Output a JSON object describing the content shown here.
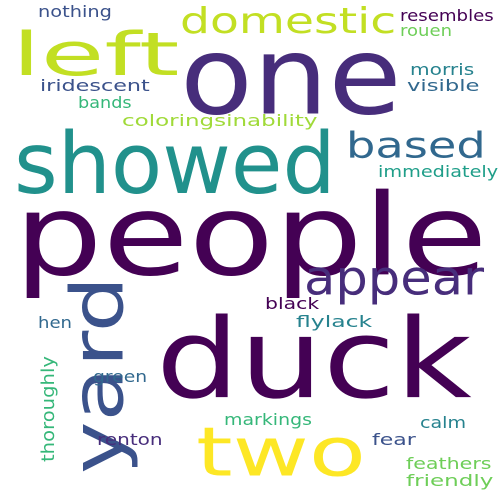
{
  "words": [
    {
      "text": "people",
      "color": "#440154",
      "orientation": "horizontal"
    },
    {
      "text": "duck",
      "color": "#440154",
      "orientation": "horizontal"
    },
    {
      "text": "one",
      "color": "#472d7b",
      "orientation": "horizontal"
    },
    {
      "text": "showed",
      "color": "#21918c",
      "orientation": "horizontal"
    },
    {
      "text": "left",
      "color": "#c2df23",
      "orientation": "horizontal"
    },
    {
      "text": "two",
      "color": "#fde725",
      "orientation": "horizontal"
    },
    {
      "text": "yard",
      "color": "#3b528b",
      "orientation": "vertical"
    },
    {
      "text": "appear",
      "color": "#472d7b",
      "orientation": "horizontal"
    },
    {
      "text": "domestic",
      "color": "#c2df23",
      "orientation": "horizontal"
    },
    {
      "text": "based",
      "color": "#31688e",
      "orientation": "horizontal"
    },
    {
      "text": "resembles",
      "color": "#440154",
      "orientation": "horizontal"
    },
    {
      "text": "rouen",
      "color": "#6ece58",
      "orientation": "horizontal"
    },
    {
      "text": "nothing",
      "color": "#3b528b",
      "orientation": "horizontal"
    },
    {
      "text": "morris",
      "color": "#26828e",
      "orientation": "horizontal"
    },
    {
      "text": "iridescent",
      "color": "#3b528b",
      "orientation": "horizontal"
    },
    {
      "text": "visible",
      "color": "#31688e",
      "orientation": "horizontal"
    },
    {
      "text": "bands",
      "color": "#35b779",
      "orientation": "horizontal"
    },
    {
      "text": "coloringsinability",
      "color": "#a0da39",
      "orientation": "horizontal"
    },
    {
      "text": "immediately",
      "color": "#1f9e89",
      "orientation": "horizontal"
    },
    {
      "text": "black",
      "color": "#440154",
      "orientation": "horizontal"
    },
    {
      "text": "hen",
      "color": "#31688e",
      "orientation": "horizontal"
    },
    {
      "text": "flylack",
      "color": "#26828e",
      "orientation": "horizontal"
    },
    {
      "text": "thoroughly",
      "color": "#35b779",
      "orientation": "vertical"
    },
    {
      "text": "green",
      "color": "#31688e",
      "orientation": "horizontal"
    },
    {
      "text": "markings",
      "color": "#35b779",
      "orientation": "horizontal"
    },
    {
      "text": "calm",
      "color": "#26828e",
      "orientation": "horizontal"
    },
    {
      "text": "renton",
      "color": "#472d7b",
      "orientation": "horizontal"
    },
    {
      "text": "fear",
      "color": "#3b528b",
      "orientation": "horizontal"
    },
    {
      "text": "feathers",
      "color": "#6ece58",
      "orientation": "horizontal"
    },
    {
      "text": "friendly",
      "color": "#6ece58",
      "orientation": "horizontal"
    }
  ]
}
